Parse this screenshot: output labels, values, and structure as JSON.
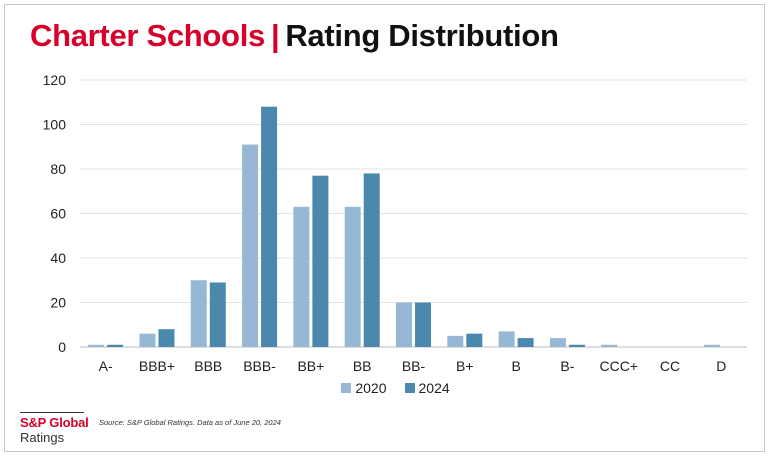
{
  "header": {
    "title_part1": "Charter Schools",
    "separator": "|",
    "title_part2": "Rating Distribution"
  },
  "footer": {
    "brand": "S&P Global",
    "brand_sub": "Ratings",
    "source": "Source: S&P Global Ratings. Data as of June 20, 2024"
  },
  "chart_data": {
    "type": "bar",
    "title": "Charter Schools | Rating Distribution",
    "xlabel": "",
    "ylabel": "",
    "ylim": [
      0,
      120
    ],
    "yticks": [
      0,
      20,
      40,
      60,
      80,
      100,
      120
    ],
    "grid": true,
    "legend_position": "bottom",
    "categories": [
      "A-",
      "BBB+",
      "BBB",
      "BBB-",
      "BB+",
      "BB",
      "BB-",
      "B+",
      "B",
      "B-",
      "CCC+",
      "CC",
      "D"
    ],
    "series": [
      {
        "name": "2020",
        "color": "#97b8d4",
        "values": [
          1,
          6,
          30,
          91,
          63,
          63,
          20,
          5,
          7,
          4,
          1,
          0,
          1
        ]
      },
      {
        "name": "2024",
        "color": "#4b88ad",
        "values": [
          1,
          8,
          29,
          108,
          77,
          78,
          20,
          6,
          4,
          1,
          0,
          0,
          0
        ]
      }
    ]
  }
}
